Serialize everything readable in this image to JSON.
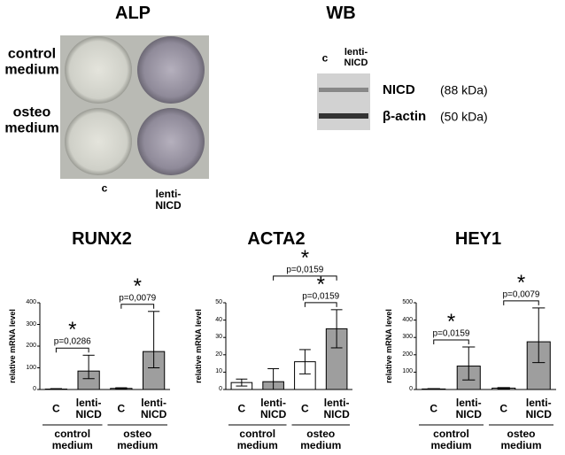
{
  "alp": {
    "title": "ALP",
    "rows": [
      "control medium",
      "osteo medium"
    ],
    "columns": [
      "c",
      "lenti-NICD"
    ]
  },
  "wb": {
    "title": "WB",
    "columns": [
      "c",
      "lenti-NICD"
    ],
    "bands": [
      {
        "name": "NICD",
        "size": "(88 kDa)"
      },
      {
        "name": "β-actin",
        "size": "(50 kDa)"
      }
    ]
  },
  "chart_data": [
    {
      "type": "bar",
      "title": "RUNX2",
      "y_label": "relative mRNA level",
      "categories": [
        "C",
        "lenti-NICD",
        "C",
        "lenti-NICD"
      ],
      "colors": [
        "#ffffff",
        "#9e9e9e",
        "#ffffff",
        "#9e9e9e"
      ],
      "values": [
        2,
        85,
        5,
        175
      ],
      "error_low": [
        2,
        35,
        3,
        75
      ],
      "error_high": [
        2,
        73,
        3,
        185
      ],
      "ylim": [
        0,
        400
      ],
      "yticks": [
        0,
        100,
        200,
        300,
        400
      ],
      "groups": [
        "control medium",
        "osteo medium"
      ],
      "comparisons": [
        {
          "pair": [
            0,
            1
          ],
          "label": "p=0,0286",
          "mark": "*"
        },
        {
          "pair": [
            2,
            3
          ],
          "label": "p=0,0079",
          "mark": "*"
        }
      ]
    },
    {
      "type": "bar",
      "title": "ACTA2",
      "y_label": "relative mRNA level",
      "categories": [
        "C",
        "lenti-NICD",
        "C",
        "lenti-NICD"
      ],
      "colors": [
        "#ffffff",
        "#9e9e9e",
        "#ffffff",
        "#9e9e9e"
      ],
      "values": [
        4,
        4.5,
        16,
        35
      ],
      "error_low": [
        2,
        4.5,
        7,
        11
      ],
      "error_high": [
        2,
        7.5,
        7,
        11
      ],
      "ylim": [
        0,
        50
      ],
      "yticks": [
        0,
        10,
        20,
        30,
        40,
        50
      ],
      "groups": [
        "control medium",
        "osteo medium"
      ],
      "comparisons": [
        {
          "pair": [
            2,
            3
          ],
          "label": "p=0,0159",
          "mark": "*"
        },
        {
          "pair": [
            1,
            3
          ],
          "label": "p=0,0159",
          "mark": "*"
        }
      ]
    },
    {
      "type": "bar",
      "title": "HEY1",
      "y_label": "relative mRNA level",
      "categories": [
        "C",
        "lenti-NICD",
        "C",
        "lenti-NICD"
      ],
      "colors": [
        "#ffffff",
        "#9e9e9e",
        "#ffffff",
        "#9e9e9e"
      ],
      "values": [
        3,
        135,
        8,
        275
      ],
      "error_low": [
        2,
        80,
        3,
        120
      ],
      "error_high": [
        2,
        110,
        3,
        195
      ],
      "ylim": [
        0,
        500
      ],
      "yticks": [
        0,
        100,
        200,
        300,
        400,
        500
      ],
      "groups": [
        "control medium",
        "osteo medium"
      ],
      "comparisons": [
        {
          "pair": [
            0,
            1
          ],
          "label": "p=0,0159",
          "mark": "*"
        },
        {
          "pair": [
            2,
            3
          ],
          "label": "p=0,0079",
          "mark": "*"
        }
      ]
    }
  ]
}
